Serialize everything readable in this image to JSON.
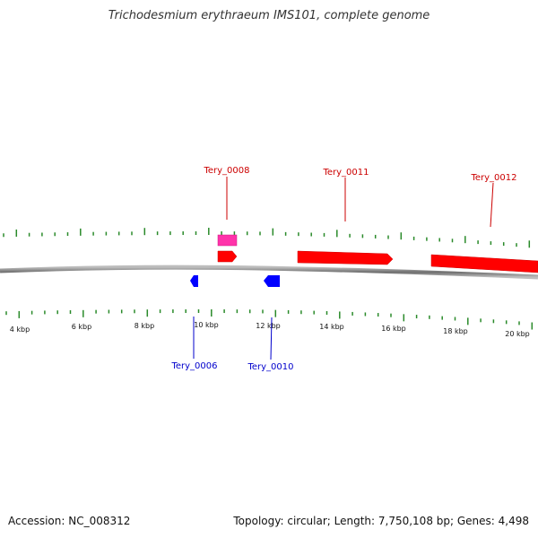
{
  "title": "Trichodesmium erythraeum IMS101, complete genome",
  "footer": {
    "accession": "Accession: NC_008312",
    "summary": "Topology: circular; Length: 7,750,108 bp; Genes: 4,498"
  },
  "colors": {
    "forward_gene": "#ff0000",
    "reverse_gene": "#0000ff",
    "highlight_gene": "#ff33aa",
    "tick": "#2a8a2a",
    "backbone": "#888888",
    "forward_label": "#cc0000",
    "reverse_label": "#0000cc"
  },
  "axis": {
    "unit": "kbp",
    "tick_labels": [
      "4 kbp",
      "6 kbp",
      "8 kbp",
      "10 kbp",
      "12 kbp",
      "14 kbp",
      "16 kbp",
      "18 kbp",
      "20 kbp"
    ]
  },
  "genes": {
    "forward": [
      {
        "name": "Tery_0008",
        "strand": "+"
      },
      {
        "name": "Tery_0011",
        "strand": "+"
      },
      {
        "name": "Tery_0012",
        "strand": "+"
      }
    ],
    "reverse": [
      {
        "name": "Tery_0006",
        "strand": "-"
      },
      {
        "name": "Tery_0010",
        "strand": "-"
      }
    ]
  }
}
